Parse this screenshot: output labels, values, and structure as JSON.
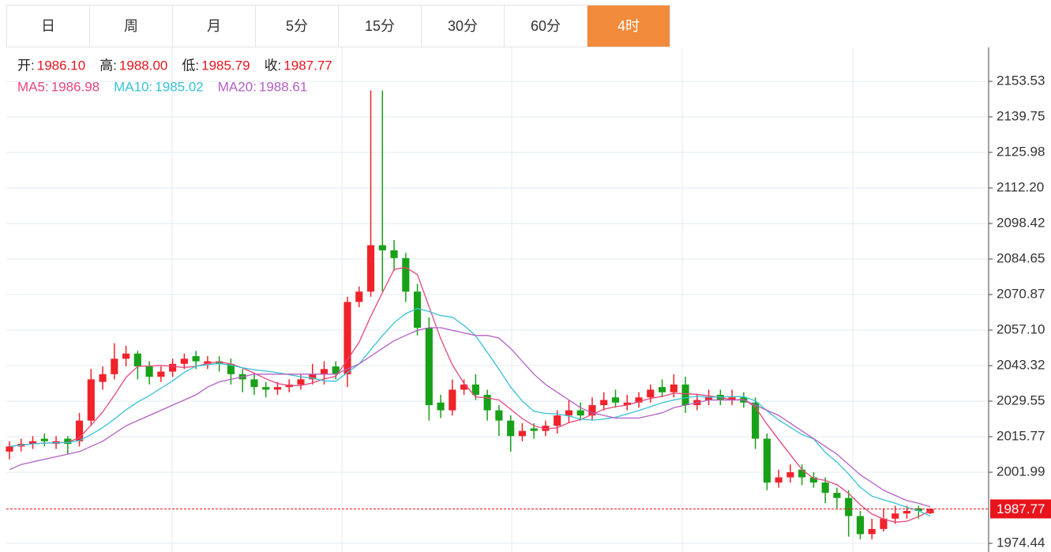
{
  "tabs": [
    "日",
    "周",
    "月",
    "5分",
    "15分",
    "30分",
    "60分",
    "4时"
  ],
  "active_tab": 7,
  "chart_data": {
    "type": "candlestick",
    "header": [
      [
        {
          "label": "开:",
          "value": "1986.10"
        },
        {
          "label": "高:",
          "value": "1988.00"
        },
        {
          "label": "低:",
          "value": "1985.79"
        },
        {
          "label": "收:",
          "value": "1987.77"
        }
      ],
      [
        {
          "label": "MA5:",
          "value": "1986.98",
          "color": "#e8457c"
        },
        {
          "label": "MA10:",
          "value": "1985.02",
          "color": "#37c2d6"
        },
        {
          "label": "MA20:",
          "value": "1988.61",
          "color": "#b35ec4"
        }
      ]
    ],
    "up_color": "#f0222a",
    "down_color": "#18a118",
    "open": [
      2010,
      2012,
      2013,
      2015,
      2013,
      2015,
      2014,
      2022,
      2037,
      2040,
      2046,
      2048,
      2043,
      2039,
      2041,
      2044,
      2047,
      2044,
      2045,
      2044,
      2040,
      2038,
      2035,
      2034,
      2035,
      2036,
      2038,
      2040,
      2043,
      2040,
      2068,
      2072,
      2090,
      2088,
      2085,
      2072,
      2058,
      2029,
      2026,
      2034,
      2036,
      2032,
      2026,
      2022,
      2016,
      2019,
      2018,
      2020,
      2024,
      2026,
      2024,
      2028,
      2031,
      2028,
      2029,
      2031,
      2035,
      2033,
      2036,
      2028,
      2030,
      2032,
      2030,
      2031,
      2029,
      2015,
      1998,
      2000,
      2003,
      2000,
      1998,
      1994,
      1992,
      1985,
      1978,
      1980,
      1984,
      1986,
      1988,
      1986.1
    ],
    "high": [
      2014,
      2015,
      2016,
      2017,
      2016,
      2016,
      2025,
      2042,
      2043,
      2052,
      2051,
      2049,
      2045,
      2043,
      2046,
      2048,
      2049,
      2047,
      2047,
      2046,
      2042,
      2040,
      2037,
      2037,
      2038,
      2040,
      2044,
      2045,
      2045,
      2070,
      2074,
      2150,
      2150,
      2092,
      2087,
      2075,
      2062,
      2032,
      2038,
      2038,
      2040,
      2034,
      2028,
      2024,
      2021,
      2021,
      2022,
      2026,
      2030,
      2029,
      2031,
      2033,
      2034,
      2032,
      2033,
      2036,
      2038,
      2040,
      2039,
      2032,
      2034,
      2034,
      2034,
      2033,
      2031,
      2017,
      2003,
      2005,
      2005,
      2002,
      2000,
      1996,
      1995,
      1987,
      1984,
      1988,
      1989,
      1989,
      1989,
      1988.0
    ],
    "low": [
      2007,
      2010,
      2011,
      2012,
      2011,
      2009,
      2012,
      2020,
      2034,
      2038,
      2043,
      2038,
      2036,
      2037,
      2039,
      2042,
      2042,
      2042,
      2041,
      2036,
      2033,
      2032,
      2031,
      2032,
      2033,
      2034,
      2036,
      2036,
      2038,
      2035,
      2066,
      2070,
      2072,
      2080,
      2068,
      2055,
      2022,
      2023,
      2024,
      2032,
      2030,
      2022,
      2016,
      2010,
      2014,
      2015,
      2016,
      2017,
      2021,
      2022,
      2022,
      2026,
      2027,
      2026,
      2027,
      2029,
      2031,
      2031,
      2025,
      2026,
      2028,
      2028,
      2028,
      2027,
      2011,
      1995,
      1996,
      1998,
      1997,
      1996,
      1990,
      1988,
      1977,
      1976,
      1976,
      1979,
      1982,
      1984,
      1984,
      1985.79
    ],
    "close": [
      2012,
      2013,
      2014,
      2014,
      2014,
      2013,
      2022,
      2038,
      2040,
      2046,
      2048,
      2043,
      2039,
      2041,
      2044,
      2046,
      2045,
      2045,
      2044,
      2040,
      2038,
      2035,
      2034,
      2035,
      2036,
      2038,
      2040,
      2042,
      2040,
      2068,
      2072,
      2090,
      2088,
      2085,
      2072,
      2058,
      2028,
      2026,
      2034,
      2036,
      2032,
      2026,
      2022,
      2016,
      2018,
      2018,
      2020,
      2024,
      2026,
      2024,
      2028,
      2030,
      2029,
      2029,
      2031,
      2034,
      2033,
      2036,
      2028,
      2030,
      2031,
      2030,
      2031,
      2029,
      2015,
      1998,
      2000,
      2002,
      2000,
      1998,
      1994,
      1992,
      1985,
      1978,
      1980,
      1984,
      1986,
      1987,
      1987,
      1987.77
    ],
    "series": [
      {
        "name": "MA5",
        "color": "#e8457c",
        "values": [
          2012,
          2012.5,
          2013,
          2013.3,
          2013.4,
          2013.6,
          2015.4,
          2020.2,
          2025.4,
          2031.8,
          2038.8,
          2043,
          2043.2,
          2043.4,
          2043,
          2042.6,
          2043,
          2044.2,
          2044.8,
          2044,
          2042.4,
          2040.4,
          2038.2,
          2036.4,
          2035.6,
          2035.6,
          2036.6,
          2038.2,
          2039.2,
          2045.6,
          2052.4,
          2062.4,
          2071.6,
          2080.6,
          2081.4,
          2078.6,
          2066.2,
          2053.8,
          2043.6,
          2036.4,
          2031.2,
          2030.8,
          2030,
          2026.4,
          2022.8,
          2020,
          2018.8,
          2019.2,
          2021.2,
          2022.4,
          2024.4,
          2026.4,
          2027.4,
          2028,
          2029.4,
          2030.6,
          2031.4,
          2032.6,
          2032.4,
          2032.2,
          2031.6,
          2031,
          2030,
          2030.2,
          2027.2,
          2020.6,
          2014.6,
          2008.8,
          2003,
          1999.6,
          1998.8,
          1997.2,
          1993.8,
          1989.4,
          1985.8,
          1983.8,
          1982.6,
          1983,
          1984.8,
          1986.98
        ]
      },
      {
        "name": "MA10",
        "color": "#37c2d6",
        "values": [
          2012,
          2012.5,
          2013,
          2013.3,
          2013.4,
          2013.5,
          2014.3,
          2016.6,
          2019.3,
          2022.6,
          2026.2,
          2029.2,
          2031.7,
          2034.6,
          2037.4,
          2040.7,
          2043.1,
          2043.7,
          2044.1,
          2043.5,
          2042.5,
          2041.7,
          2041.2,
          2040.6,
          2039.8,
          2039,
          2038.5,
          2037.4,
          2037.3,
          2040.6,
          2044,
          2049.5,
          2054.9,
          2059.9,
          2063.5,
          2065.5,
          2064.3,
          2062.7,
          2062.1,
          2058.9,
          2054.9,
          2048.5,
          2041.9,
          2035,
          2029.6,
          2025.6,
          2024.8,
          2024.6,
          2023.8,
          2022.6,
          2022.2,
          2022.6,
          2023.3,
          2024.6,
          2025.9,
          2027.4,
          2028.9,
          2030,
          2030.9,
          2031.4,
          2031.1,
          2031.2,
          2031.3,
          2031.3,
          2029.7,
          2025.8,
          2022.3,
          2019.4,
          2016.6,
          2014.9,
          2009.7,
          2005.9,
          2001.3,
          1996.2,
          1992.7,
          1991.3,
          1990,
          1988.4,
          1987.1,
          1985.02
        ]
      },
      {
        "name": "MA20",
        "color": "#b35ec4",
        "values": [
          2003,
          2005,
          2006,
          2007,
          2008,
          2009,
          2010,
          2012,
          2014,
          2017,
          2020,
          2022,
          2024,
          2026,
          2028,
          2030,
          2032,
          2035,
          2037,
          2038,
          2039,
          2040,
          2040,
          2040,
          2040,
          2040,
          2040,
          2040,
          2040,
          2042,
          2044,
          2047,
          2050,
          2053,
          2055,
          2057,
          2058,
          2058,
          2057,
          2056,
          2055,
          2055,
          2054,
          2050,
          2045,
          2040,
          2036,
          2033,
          2030,
          2027,
          2025,
          2024,
          2023,
          2023,
          2023,
          2024,
          2025,
          2027,
          2028,
          2029,
          2030,
          2030,
          2030,
          2030,
          2028,
          2026,
          2024,
          2021,
          2018,
          2015,
          2012,
          2009,
          2005,
          2001,
          1998,
          1995,
          1993,
          1991,
          1990,
          1988.61
        ]
      }
    ],
    "ylim": [
      1971.07,
      2166.69
    ],
    "yticks": [
      1974.44,
      2001.99,
      2015.77,
      2029.55,
      2043.32,
      {
        "value": 2057.1,
        "label": "2057.10"
      },
      2070.87,
      2084.65,
      2098.42,
      {
        "value": 2112.2,
        "label": "2112.20"
      },
      2125.98,
      2139.75,
      2153.53
    ],
    "grid": true,
    "last_color": "#e8141c"
  }
}
